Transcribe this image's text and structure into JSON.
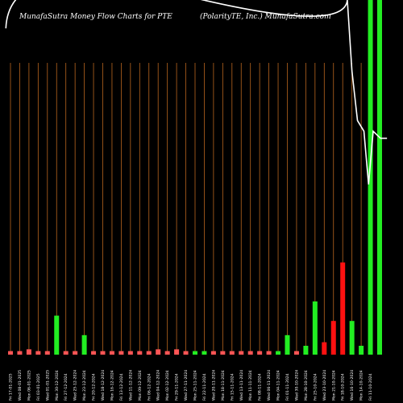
{
  "chart_data": {
    "type": "bar",
    "title_left": "MunafaSutra  Money Flow  Charts for PTE",
    "title_right": "(PolarityTE,  Inc.) MunafaSutra.com",
    "colors": {
      "background": "#000000",
      "up": "#22ee22",
      "down": "#ff1111",
      "neutral": "#ff5555",
      "grid": "#b8651e",
      "line": "#ffffff"
    },
    "categories": [
      "Fri 17-01-2025",
      "Wed 08-01-2025",
      "Mon 06-01-2025",
      "Fri 03-01-2025",
      "Wed 01-01-2025",
      "Mon 30-12-2024",
      "Fri 27-12-2024",
      "Wed 25-12-2024",
      "Mon 23-12-2024",
      "Fri 20-12-2024",
      "Wed 18-12-2024",
      "Mon 16-12-2024",
      "Fri 13-12-2024",
      "Wed 11-12-2024",
      "Mon 09-12-2024",
      "Fri 06-12-2024",
      "Wed 04-12-2024",
      "Mon 02-12-2024",
      "Fri 29-11-2024",
      "Wed 27-11-2024",
      "Mon 25-11-2024",
      "Fri 22-11-2024",
      "Wed 20-11-2024",
      "Mon 18-11-2024",
      "Fri 15-11-2024",
      "Wed 13-11-2024",
      "Mon 11-11-2024",
      "Fri 08-11-2024",
      "Wed 06-11-2024",
      "Mon 04-11-2024",
      "Fri 01-11-2024",
      "Wed 30-10-2024",
      "Mon 28-10-2024",
      "Fri 25-10-2024",
      "Wed 23-10-2024",
      "Mon 21-10-2024",
      "Fri 18-10-2024",
      "Wed 16-10-2024",
      "Mon 14-10-2024",
      "Fri 11-10-2024"
    ],
    "values": [
      1,
      1,
      1.5,
      1,
      1,
      11,
      1,
      1,
      5.5,
      1,
      1,
      1,
      1,
      1,
      1,
      1,
      1.5,
      1,
      1.5,
      1,
      1,
      1,
      1,
      1,
      1,
      1,
      1,
      1,
      1,
      1,
      5.5,
      1,
      2.5,
      15,
      3.5,
      9.5,
      26,
      9.5,
      2.5,
      100
    ],
    "bar_colors": [
      "neutral",
      "neutral",
      "neutral",
      "neutral",
      "neutral",
      "up",
      "neutral",
      "neutral",
      "up",
      "neutral",
      "neutral",
      "neutral",
      "neutral",
      "neutral",
      "neutral",
      "neutral",
      "neutral",
      "neutral",
      "neutral",
      "neutral",
      "up",
      "up",
      "neutral",
      "neutral",
      "neutral",
      "neutral",
      "neutral",
      "neutral",
      "neutral",
      "up",
      "up",
      "neutral",
      "up",
      "up",
      "down",
      "down",
      "down",
      "up",
      "up",
      "up"
    ],
    "extra_bar": {
      "value": 100,
      "color": "up"
    },
    "line": [
      {
        "index": 36.5,
        "value": 100
      },
      {
        "index": 37,
        "value": 80
      },
      {
        "index": 37.6,
        "value": 66
      },
      {
        "index": 38.3,
        "value": 63
      },
      {
        "index": 38.8,
        "value": 48
      },
      {
        "index": 39.3,
        "value": 63
      },
      {
        "index": 40.1,
        "value": 61
      },
      {
        "index": 40.8,
        "value": 61
      }
    ],
    "line_start": {
      "index": -0.5,
      "value": 92
    },
    "ylim": [
      0,
      100
    ],
    "grid": true,
    "legend": "none"
  }
}
